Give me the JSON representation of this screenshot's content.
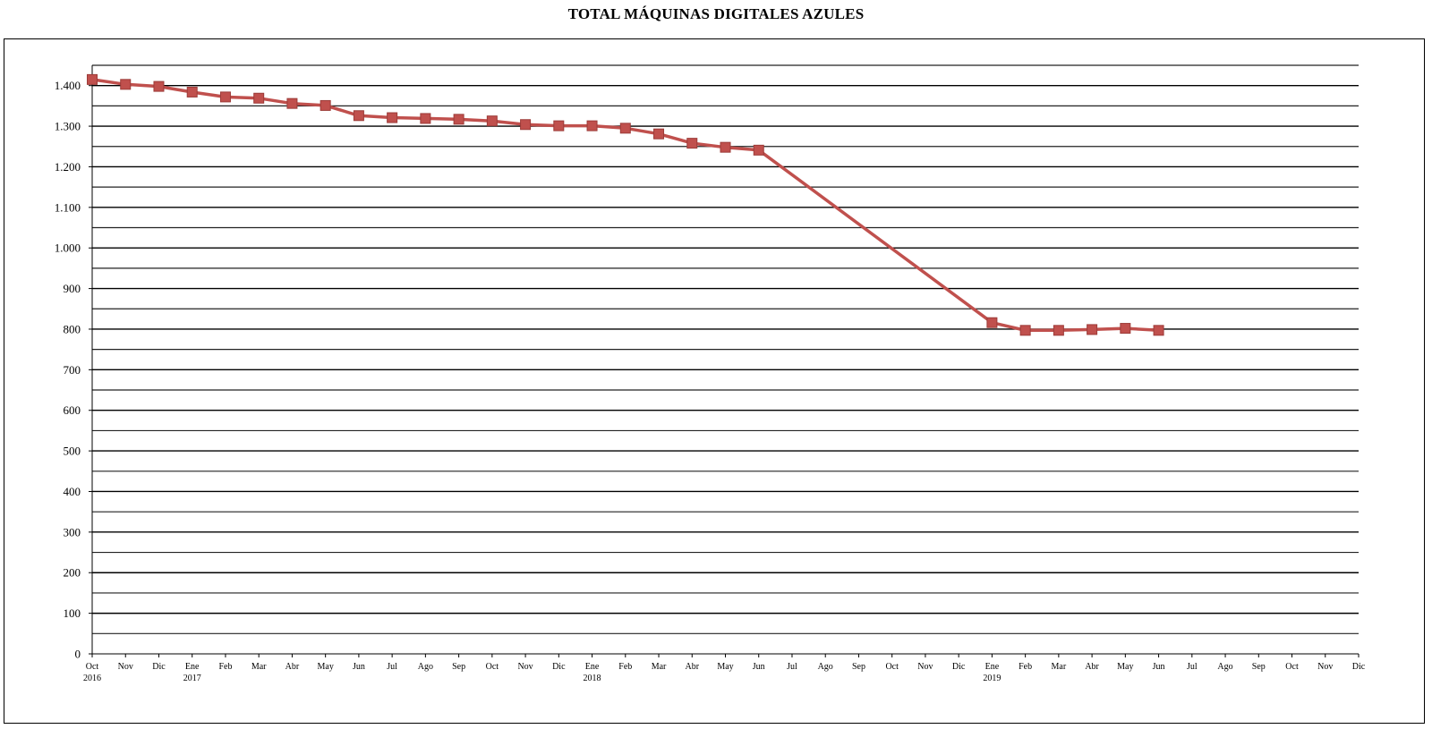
{
  "chart_data": {
    "type": "line",
    "title": "TOTAL MÁQUINAS DIGITALES AZULES",
    "xlabel": "",
    "ylabel": "",
    "ylim": [
      0,
      1400
    ],
    "y_ticks": [
      0,
      100,
      200,
      300,
      400,
      500,
      600,
      700,
      800,
      900,
      1000,
      1100,
      1200,
      1300,
      1400
    ],
    "y_tick_labels": [
      "0",
      "100",
      "200",
      "300",
      "400",
      "500",
      "600",
      "700",
      "800",
      "900",
      "1.000",
      "1.100",
      "1.200",
      "1.300",
      "1.400"
    ],
    "grid": true,
    "categories": [
      "Oct",
      "Nov",
      "Dic",
      "Ene",
      "Feb",
      "Mar",
      "Abr",
      "May",
      "Jun",
      "Jul",
      "Ago",
      "Sep",
      "Oct",
      "Nov",
      "Dic",
      "Ene",
      "Feb",
      "Mar",
      "Abr",
      "May",
      "Jun",
      "Jul",
      "Ago",
      "Sep",
      "Oct",
      "Nov",
      "Dic",
      "Ene",
      "Feb",
      "Mar",
      "Abr",
      "May",
      "Jun",
      "Jul",
      "Ago",
      "Sep",
      "Oct",
      "Nov",
      "Dic"
    ],
    "year_labels": [
      {
        "index": 0,
        "label": "2016"
      },
      {
        "index": 3,
        "label": "2017"
      },
      {
        "index": 15,
        "label": "2018"
      },
      {
        "index": 27,
        "label": "2019"
      }
    ],
    "series": [
      {
        "color": "#c0504d",
        "marker": "square",
        "values": [
          1415,
          1403,
          1398,
          1384,
          1372,
          1369,
          1356,
          1351,
          1326,
          1321,
          1319,
          1317,
          1313,
          1304,
          1301,
          1301,
          1295,
          1281,
          1258,
          1248,
          1241,
          null,
          null,
          null,
          null,
          null,
          null,
          816,
          797,
          797,
          799,
          802,
          797,
          null,
          null,
          null,
          null,
          null,
          null
        ]
      }
    ]
  }
}
